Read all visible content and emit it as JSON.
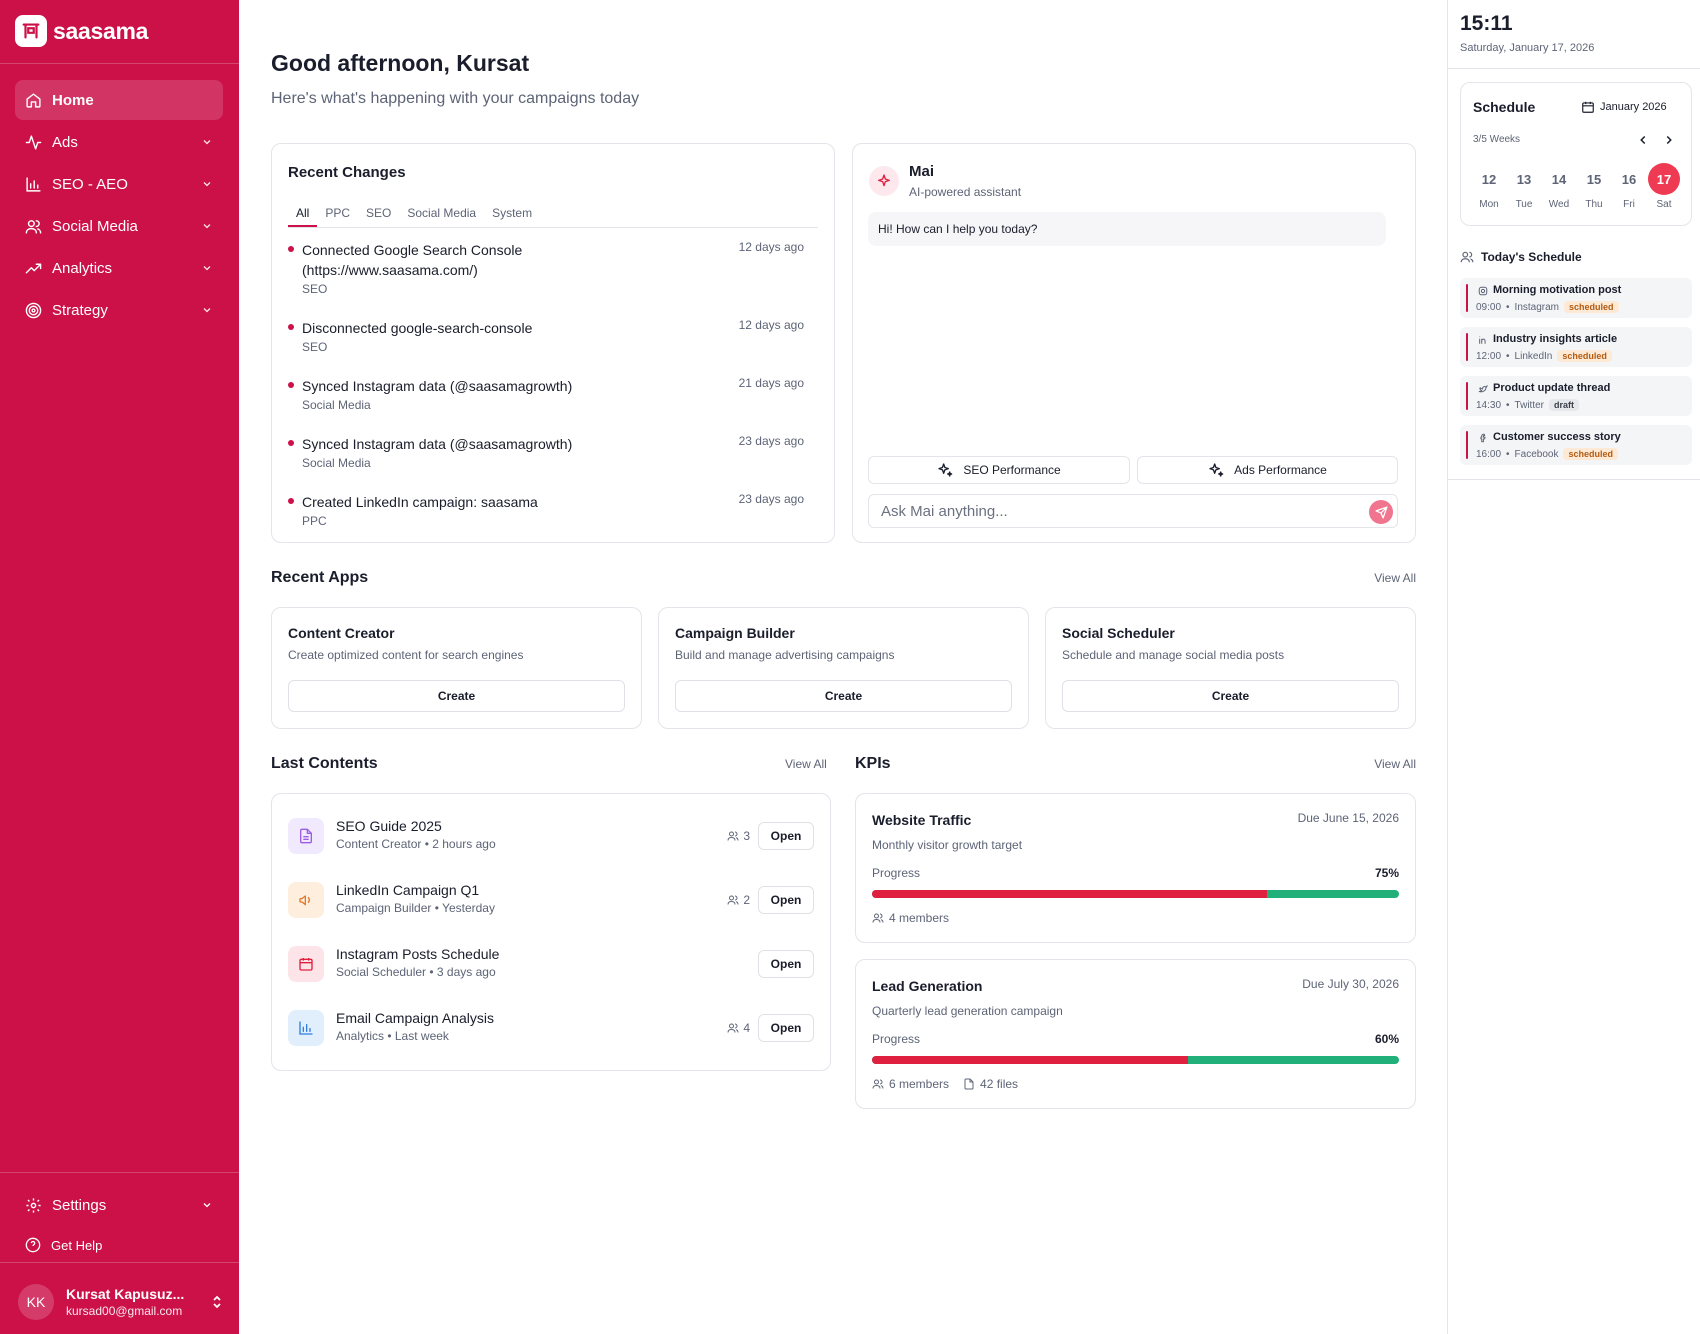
{
  "brand": {
    "name": "saasama",
    "accent": "#cb1148"
  },
  "sidebar": {
    "items": [
      {
        "label": "Home",
        "icon": "home-icon",
        "active": true
      },
      {
        "label": "Ads",
        "icon": "activity-icon"
      },
      {
        "label": "SEO - AEO",
        "icon": "bar-chart-icon"
      },
      {
        "label": "Social Media",
        "icon": "users-icon"
      },
      {
        "label": "Analytics",
        "icon": "trending-up-icon"
      },
      {
        "label": "Strategy",
        "icon": "target-icon"
      }
    ],
    "settings": "Settings",
    "help": "Get Help",
    "user": {
      "initials": "KK",
      "name": "Kursat Kapusuz...",
      "email": "kursad00@gmail.com"
    }
  },
  "header": {
    "greeting": "Good afternoon, Kursat",
    "subtitle": "Here's what's happening with your campaigns today"
  },
  "recent_changes": {
    "title": "Recent Changes",
    "tabs": [
      "All",
      "PPC",
      "SEO",
      "Social Media",
      "System"
    ],
    "items": [
      {
        "text": "Connected Google Search Console (https://www.saasama.com/)",
        "category": "SEO",
        "ago": "12 days ago"
      },
      {
        "text": "Disconnected google-search-console",
        "category": "SEO",
        "ago": "12 days ago"
      },
      {
        "text": "Synced Instagram data (@saasamagrowth)",
        "category": "Social Media",
        "ago": "21 days ago"
      },
      {
        "text": "Synced Instagram data (@saasamagrowth)",
        "category": "Social Media",
        "ago": "23 days ago"
      },
      {
        "text": "Created LinkedIn campaign: saasama",
        "category": "PPC",
        "ago": "23 days ago"
      }
    ]
  },
  "mai": {
    "name": "Mai",
    "subtitle": "AI-powered assistant",
    "message": "Hi! How can I help you today?",
    "quick_actions": [
      "SEO Performance",
      "Ads Performance"
    ],
    "input_placeholder": "Ask Mai anything..."
  },
  "recent_apps": {
    "title": "Recent Apps",
    "view_all": "View All",
    "apps": [
      {
        "title": "Content Creator",
        "desc": "Create optimized content for search engines",
        "button": "Create"
      },
      {
        "title": "Campaign Builder",
        "desc": "Build and manage advertising campaigns",
        "button": "Create"
      },
      {
        "title": "Social Scheduler",
        "desc": "Schedule and manage social media posts",
        "button": "Create"
      }
    ]
  },
  "last_contents": {
    "title": "Last Contents",
    "view_all": "View All",
    "items": [
      {
        "title": "SEO Guide 2025",
        "sub": "Content Creator • 2 hours ago",
        "members": "3",
        "icon": "document-icon",
        "button": "Open"
      },
      {
        "title": "LinkedIn Campaign Q1",
        "sub": "Campaign Builder • Yesterday",
        "members": "2",
        "icon": "megaphone-icon",
        "button": "Open"
      },
      {
        "title": "Instagram Posts Schedule",
        "sub": "Social Scheduler • 3 days ago",
        "members": "",
        "icon": "calendar-icon",
        "button": "Open"
      },
      {
        "title": "Email Campaign Analysis",
        "sub": "Analytics • Last week",
        "members": "4",
        "icon": "bar-chart-icon",
        "button": "Open"
      }
    ]
  },
  "kpis": {
    "title": "KPIs",
    "view_all": "View All",
    "items": [
      {
        "title": "Website Traffic",
        "due": "Due June 15, 2026",
        "desc": "Monthly visitor growth target",
        "progress_label": "Progress",
        "progress": 75,
        "progress_text": "75%",
        "members": "4 members",
        "files": ""
      },
      {
        "title": "Lead Generation",
        "due": "Due July 30, 2026",
        "desc": "Quarterly lead generation campaign",
        "progress_label": "Progress",
        "progress": 60,
        "progress_text": "60%",
        "members": "6 members",
        "files": "42 files"
      }
    ]
  },
  "right_panel": {
    "time": "15:11",
    "date": "Saturday, January 17, 2026",
    "schedule": {
      "title": "Schedule",
      "month": "January 2026",
      "weeks": "3/5 Weeks",
      "days": [
        {
          "num": "12",
          "name": "Mon"
        },
        {
          "num": "13",
          "name": "Tue"
        },
        {
          "num": "14",
          "name": "Wed"
        },
        {
          "num": "15",
          "name": "Thu"
        },
        {
          "num": "16",
          "name": "Fri"
        },
        {
          "num": "17",
          "name": "Sat",
          "selected": true
        }
      ]
    },
    "today": {
      "title": "Today's Schedule",
      "events": [
        {
          "title": "Morning motivation post",
          "time": "09:00",
          "platform": "Instagram",
          "status": "scheduled",
          "icon": "instagram-icon"
        },
        {
          "title": "Industry insights article",
          "time": "12:00",
          "platform": "LinkedIn",
          "status": "scheduled",
          "icon": "linkedin-icon"
        },
        {
          "title": "Product update thread",
          "time": "14:30",
          "platform": "Twitter",
          "status": "draft",
          "icon": "twitter-icon"
        },
        {
          "title": "Customer success story",
          "time": "16:00",
          "platform": "Facebook",
          "status": "scheduled",
          "icon": "facebook-icon"
        }
      ]
    }
  }
}
